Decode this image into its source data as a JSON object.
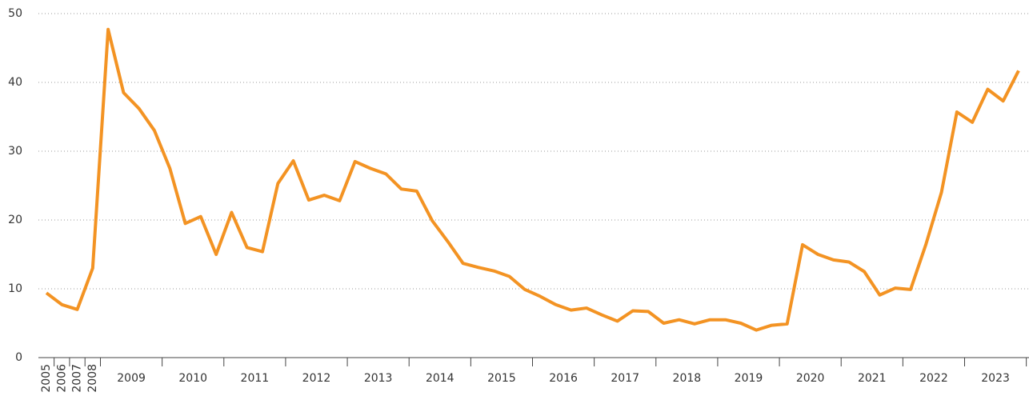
{
  "chart_data": {
    "type": "line",
    "categories": [
      "2005",
      "2006",
      "2007",
      "2008",
      "2009",
      null,
      null,
      null,
      "2010",
      null,
      null,
      null,
      "2011",
      null,
      null,
      null,
      "2012",
      null,
      null,
      null,
      "2013",
      null,
      null,
      null,
      "2014",
      null,
      null,
      null,
      "2015",
      null,
      null,
      null,
      "2016",
      null,
      null,
      null,
      "2017",
      null,
      null,
      null,
      "2018",
      null,
      null,
      null,
      "2019",
      null,
      null,
      null,
      "2020",
      null,
      null,
      null,
      "2021",
      null,
      null,
      null,
      "2022",
      null,
      null,
      null,
      "2023",
      null,
      null,
      null
    ],
    "values": [
      9.4,
      7.7,
      7.0,
      13.0,
      47.7,
      38.5,
      36.2,
      33.0,
      27.5,
      19.5,
      20.5,
      15.0,
      21.1,
      16.0,
      15.4,
      25.3,
      28.6,
      22.9,
      23.6,
      22.8,
      28.5,
      27.5,
      26.7,
      24.5,
      24.2,
      19.9,
      16.9,
      13.7,
      13.1,
      12.6,
      11.8,
      9.9,
      8.9,
      7.7,
      6.9,
      7.2,
      6.2,
      5.3,
      6.8,
      6.7,
      5.0,
      5.5,
      4.9,
      5.5,
      5.5,
      5.0,
      4.0,
      4.7,
      4.9,
      16.4,
      15.0,
      14.2,
      13.9,
      12.5,
      9.1,
      10.1,
      9.9,
      16.5,
      24.0,
      35.7,
      34.2,
      39.0,
      37.3,
      41.7
    ],
    "color": "#f39323",
    "ylim": [
      0,
      50
    ],
    "yticks": [
      0,
      10,
      20,
      30,
      40,
      50
    ],
    "grid": true
  }
}
